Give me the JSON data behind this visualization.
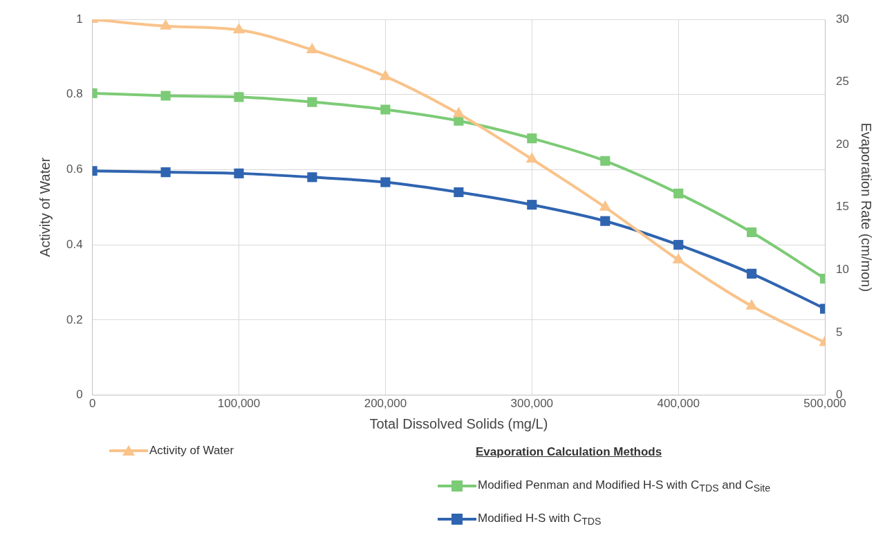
{
  "chart_data": {
    "type": "line",
    "xlabel": "Total Dissolved Solids (mg/L)",
    "ylabel": "Activity of Water",
    "y2label": "Evaporation Rate (cm/mon)",
    "legend_title": "Evaporation Calculation Methods",
    "x": [
      0,
      50000,
      100000,
      150000,
      200000,
      250000,
      300000,
      350000,
      400000,
      450000,
      500000
    ],
    "xlim": [
      0,
      500000
    ],
    "xticks": [
      {
        "value": 0,
        "label": "0"
      },
      {
        "value": 100000,
        "label": "100,000"
      },
      {
        "value": 200000,
        "label": "200,000"
      },
      {
        "value": 300000,
        "label": "300,000"
      },
      {
        "value": 400000,
        "label": "400,000"
      },
      {
        "value": 500000,
        "label": "500,000"
      }
    ],
    "ylim": [
      0,
      1
    ],
    "yticks": [
      0,
      0.2,
      0.4,
      0.6,
      0.8,
      1
    ],
    "y2lim": [
      0,
      30
    ],
    "y2ticks": [
      0,
      5,
      10,
      15,
      20,
      25,
      30
    ],
    "grid": true,
    "legend": "bottom",
    "series": [
      {
        "name": "Activity of Water",
        "color": "#f9c38a",
        "marker": "triangle",
        "values": [
          1.0,
          0.982,
          0.972,
          0.919,
          0.848,
          0.749,
          0.628,
          0.5,
          0.36,
          0.237,
          0.14
        ]
      },
      {
        "name": "Modified Penman and Modified H-S with C$_{TDS}$ and C$_{Site}$",
        "color": "#7ccb76",
        "marker": "square",
        "axis": "y2",
        "values": [
          24.1,
          23.9,
          23.8,
          23.4,
          22.8,
          21.9,
          20.5,
          18.7,
          16.1,
          13.0,
          9.3
        ]
      },
      {
        "name": "Modified H-S with C$_{TDS}$",
        "color": "#2f64b0",
        "marker": "square",
        "axis": "y2",
        "values": [
          17.9,
          17.8,
          17.7,
          17.4,
          17.0,
          16.2,
          15.2,
          13.9,
          12.0,
          9.7,
          6.9
        ]
      }
    ]
  }
}
